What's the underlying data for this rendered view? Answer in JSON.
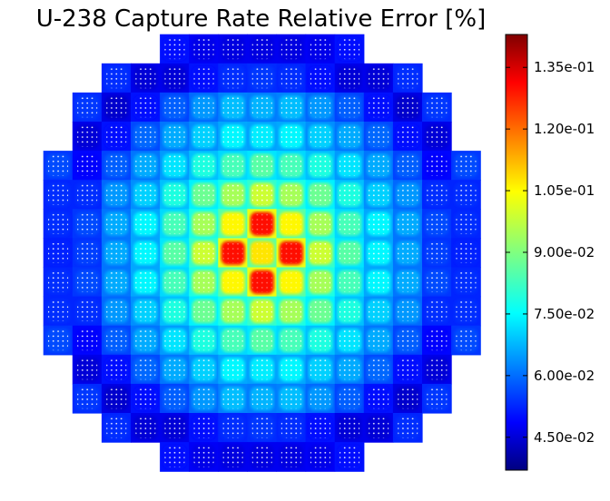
{
  "chart_data": {
    "type": "heatmap",
    "title": "U-238 Capture Rate Relative Error [%]",
    "xlabel": "",
    "ylabel": "",
    "grid": false,
    "legend": "colorbar-right",
    "colorscale": "jet",
    "colorbar": {
      "min": 0.037,
      "max": 0.143,
      "ticks": [
        0.045,
        0.06,
        0.075,
        0.09,
        0.105,
        0.12,
        0.135
      ],
      "tick_labels": [
        "4.50e-02",
        "6.00e-02",
        "7.50e-02",
        "9.00e-02",
        "1.05e-01",
        "1.20e-01",
        "1.35e-01"
      ]
    },
    "assembly_grid_rows": 15,
    "assembly_grid_cols": 15,
    "assembly_values": [
      [
        null,
        null,
        null,
        null,
        0.052,
        0.048,
        0.047,
        0.047,
        0.047,
        0.048,
        0.052,
        null,
        null,
        null,
        null
      ],
      [
        null,
        null,
        0.055,
        0.046,
        0.046,
        0.052,
        0.055,
        0.056,
        0.055,
        0.052,
        0.046,
        0.046,
        0.055,
        null,
        null
      ],
      [
        null,
        0.056,
        0.045,
        0.052,
        0.06,
        0.066,
        0.07,
        0.069,
        0.07,
        0.066,
        0.06,
        0.052,
        0.045,
        0.056,
        null
      ],
      [
        null,
        0.046,
        0.052,
        0.061,
        0.068,
        0.072,
        0.076,
        0.075,
        0.076,
        0.072,
        0.068,
        0.061,
        0.052,
        0.046,
        null
      ],
      [
        0.058,
        0.05,
        0.06,
        0.068,
        0.074,
        0.08,
        0.084,
        0.086,
        0.084,
        0.08,
        0.074,
        0.068,
        0.06,
        0.05,
        0.058
      ],
      [
        0.055,
        0.055,
        0.066,
        0.072,
        0.08,
        0.088,
        0.094,
        0.098,
        0.094,
        0.088,
        0.08,
        0.072,
        0.066,
        0.055,
        0.055
      ],
      [
        0.055,
        0.058,
        0.068,
        0.076,
        0.084,
        0.094,
        0.104,
        0.128,
        0.104,
        0.094,
        0.084,
        0.076,
        0.068,
        0.058,
        0.055
      ],
      [
        0.054,
        0.057,
        0.068,
        0.076,
        0.086,
        0.098,
        0.128,
        0.106,
        0.128,
        0.098,
        0.086,
        0.076,
        0.068,
        0.057,
        0.054
      ],
      [
        0.055,
        0.058,
        0.068,
        0.076,
        0.084,
        0.094,
        0.104,
        0.128,
        0.104,
        0.094,
        0.084,
        0.076,
        0.068,
        0.058,
        0.055
      ],
      [
        0.055,
        0.055,
        0.066,
        0.072,
        0.08,
        0.088,
        0.094,
        0.098,
        0.094,
        0.088,
        0.08,
        0.072,
        0.066,
        0.055,
        0.055
      ],
      [
        0.058,
        0.05,
        0.06,
        0.068,
        0.074,
        0.08,
        0.084,
        0.086,
        0.084,
        0.08,
        0.074,
        0.068,
        0.06,
        0.05,
        0.058
      ],
      [
        null,
        0.046,
        0.052,
        0.061,
        0.068,
        0.072,
        0.076,
        0.075,
        0.076,
        0.072,
        0.068,
        0.061,
        0.052,
        0.046,
        null
      ],
      [
        null,
        0.056,
        0.045,
        0.052,
        0.06,
        0.066,
        0.07,
        0.069,
        0.07,
        0.066,
        0.06,
        0.052,
        0.045,
        0.056,
        null
      ],
      [
        null,
        null,
        0.055,
        0.046,
        0.046,
        0.052,
        0.055,
        0.056,
        0.055,
        0.052,
        0.046,
        0.046,
        0.055,
        null,
        null
      ],
      [
        null,
        null,
        null,
        null,
        0.052,
        0.048,
        0.047,
        0.047,
        0.047,
        0.048,
        0.052,
        null,
        null,
        null,
        null
      ]
    ],
    "background_value": 0.052,
    "peak_value": 0.135
  }
}
